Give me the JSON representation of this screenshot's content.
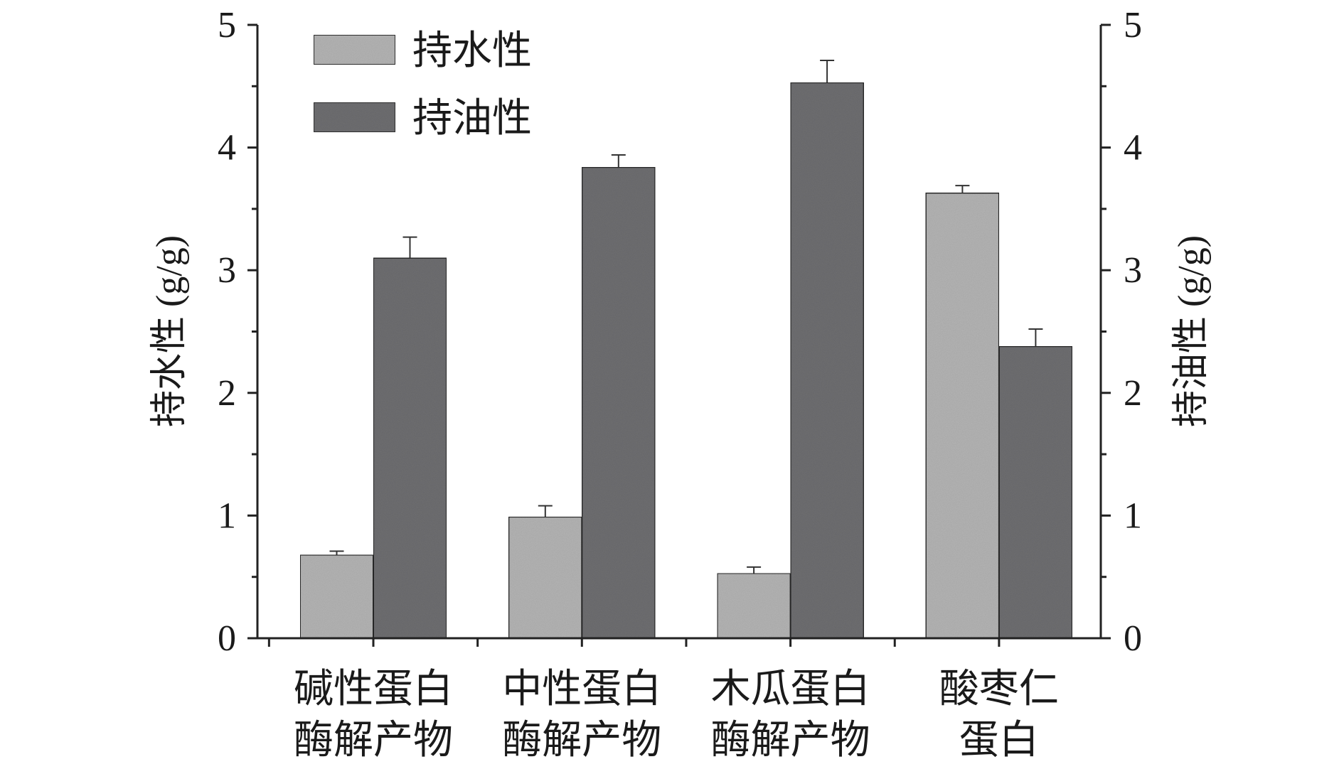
{
  "chart_data": {
    "type": "bar",
    "categories": [
      [
        "碱性蛋白",
        "酶解产物"
      ],
      [
        "中性蛋白",
        "酶解产物"
      ],
      [
        "木瓜蛋白",
        "酶解产物"
      ],
      [
        "酸枣仁",
        "蛋白"
      ]
    ],
    "series": [
      {
        "name": "持水性",
        "axis": "left",
        "color": "#b5b5b5",
        "values": [
          0.68,
          0.99,
          0.53,
          3.63
        ],
        "errors": [
          0.03,
          0.09,
          0.05,
          0.06
        ]
      },
      {
        "name": "持油性",
        "axis": "right",
        "color": "#6f6f72",
        "values": [
          3.1,
          3.84,
          4.53,
          2.38
        ],
        "errors": [
          0.17,
          0.1,
          0.18,
          0.14
        ]
      }
    ],
    "ylabel_left": "持水性 (g/g)",
    "ylabel_right": "持油性 (g/g)",
    "xlabel": "",
    "ylim": [
      0,
      5
    ],
    "yticks": [
      "0",
      "1",
      "2",
      "3",
      "4",
      "5"
    ],
    "legend_position": "top-left",
    "grid": false,
    "error_bars": true
  }
}
